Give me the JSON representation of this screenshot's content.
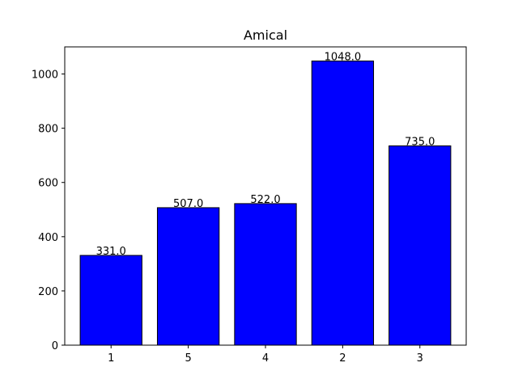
{
  "chart_data": {
    "type": "bar",
    "title": "Amical",
    "xlabel": "",
    "ylabel": "",
    "categories": [
      "1",
      "5",
      "4",
      "2",
      "3"
    ],
    "values": [
      331.0,
      507.0,
      522.0,
      1048.0,
      735.0
    ],
    "data_labels": [
      "331.0",
      "507.0",
      "522.0",
      "1048.0",
      "735.0"
    ],
    "ylim": [
      0,
      1100
    ],
    "yticks": [
      0,
      200,
      400,
      600,
      800,
      1000
    ],
    "ytick_labels": [
      "0",
      "200",
      "400",
      "600",
      "800",
      "1000"
    ],
    "grid": false,
    "legend": "none",
    "colors": {
      "bar_fill": "#0000ff",
      "bar_edge": "#000000"
    }
  }
}
